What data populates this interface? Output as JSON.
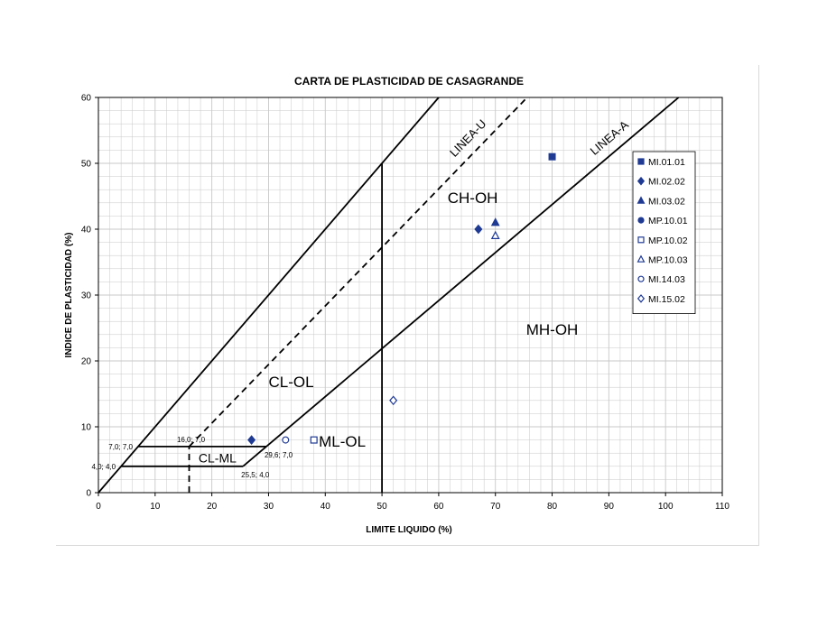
{
  "chart_data": {
    "type": "scatter",
    "title": "CARTA DE PLASTICIDAD DE CASAGRANDE",
    "xlabel": "LIMITE LIQUIDO (%)",
    "ylabel": "INDICE DE PLASTICIDAD (%)",
    "xlim": [
      0,
      110
    ],
    "ylim": [
      0,
      60
    ],
    "xticks": [
      0,
      10,
      20,
      30,
      40,
      50,
      60,
      70,
      80,
      90,
      100,
      110
    ],
    "yticks": [
      0,
      10,
      20,
      30,
      40,
      50,
      60
    ],
    "grid": true,
    "legend_position": "right",
    "series": [
      {
        "name": "MI.01.01",
        "marker": "square-filled",
        "color": "#1f3a93",
        "points": [
          [
            80,
            51
          ]
        ]
      },
      {
        "name": "MI.02.02",
        "marker": "diamond-filled",
        "color": "#1f3a93",
        "points": [
          [
            27,
            8
          ],
          [
            67,
            40
          ]
        ]
      },
      {
        "name": "MI.03.02",
        "marker": "triangle-filled",
        "color": "#1f3a93",
        "points": [
          [
            70,
            41
          ]
        ]
      },
      {
        "name": "MP.10.01",
        "marker": "circle-filled",
        "color": "#1f3a93",
        "points": []
      },
      {
        "name": "MP.10.02",
        "marker": "square-open",
        "color": "#1f3a93",
        "points": [
          [
            38,
            8
          ]
        ]
      },
      {
        "name": "MP.10.03",
        "marker": "triangle-open",
        "color": "#1f3a93",
        "points": [
          [
            70,
            39
          ]
        ]
      },
      {
        "name": "MI.14.03",
        "marker": "circle-open",
        "color": "#1f3a93",
        "points": [
          [
            33,
            8
          ]
        ]
      },
      {
        "name": "MI.15.02",
        "marker": "diamond-open",
        "color": "#1f3a93",
        "points": [
          [
            52,
            14
          ]
        ]
      }
    ],
    "lines": [
      {
        "name": "LINEA-U",
        "style": "dashed",
        "points": [
          [
            16,
            7
          ],
          [
            75.6,
            60
          ]
        ]
      },
      {
        "name": "LINEA-A",
        "style": "solid",
        "points": [
          [
            29.6,
            7
          ],
          [
            102.3,
            60
          ]
        ]
      },
      {
        "name": "",
        "style": "solid",
        "points": [
          [
            0,
            0
          ],
          [
            60,
            60
          ]
        ]
      },
      {
        "name": "",
        "style": "solid",
        "points": [
          [
            50,
            0
          ],
          [
            50,
            50
          ]
        ]
      },
      {
        "name": "",
        "style": "solid",
        "points": [
          [
            7,
            7
          ],
          [
            29.6,
            7
          ]
        ]
      },
      {
        "name": "",
        "style": "solid",
        "points": [
          [
            4,
            4
          ],
          [
            25.5,
            4
          ]
        ]
      },
      {
        "name": "",
        "style": "solid",
        "points": [
          [
            25.5,
            4
          ],
          [
            29.6,
            7
          ]
        ]
      },
      {
        "name": "",
        "style": "dashed",
        "points": [
          [
            16,
            0
          ],
          [
            16,
            7
          ]
        ]
      }
    ],
    "zone_labels": [
      {
        "text": "CH-OH",
        "x": 66,
        "y": 44
      },
      {
        "text": "MH-OH",
        "x": 80,
        "y": 24
      },
      {
        "text": "CL-OL",
        "x": 34,
        "y": 16
      },
      {
        "text": "ML-OL",
        "x": 43,
        "y": 7
      },
      {
        "text": "CL-ML",
        "x": 21,
        "y": 4.6
      }
    ],
    "point_labels": [
      {
        "text": "7,0; 7,0",
        "x": 7,
        "y": 7
      },
      {
        "text": "4,0; 4,0",
        "x": 4,
        "y": 4
      },
      {
        "text": "16,0; 7,0",
        "x": 16,
        "y": 7
      },
      {
        "text": "29,6; 7,0",
        "x": 29.6,
        "y": 7
      },
      {
        "text": "25,5; 4,0",
        "x": 25.5,
        "y": 4
      }
    ],
    "colors": {
      "markers": "#1f3a93",
      "lines": "#000000",
      "grid": "#c8c8c8"
    }
  }
}
